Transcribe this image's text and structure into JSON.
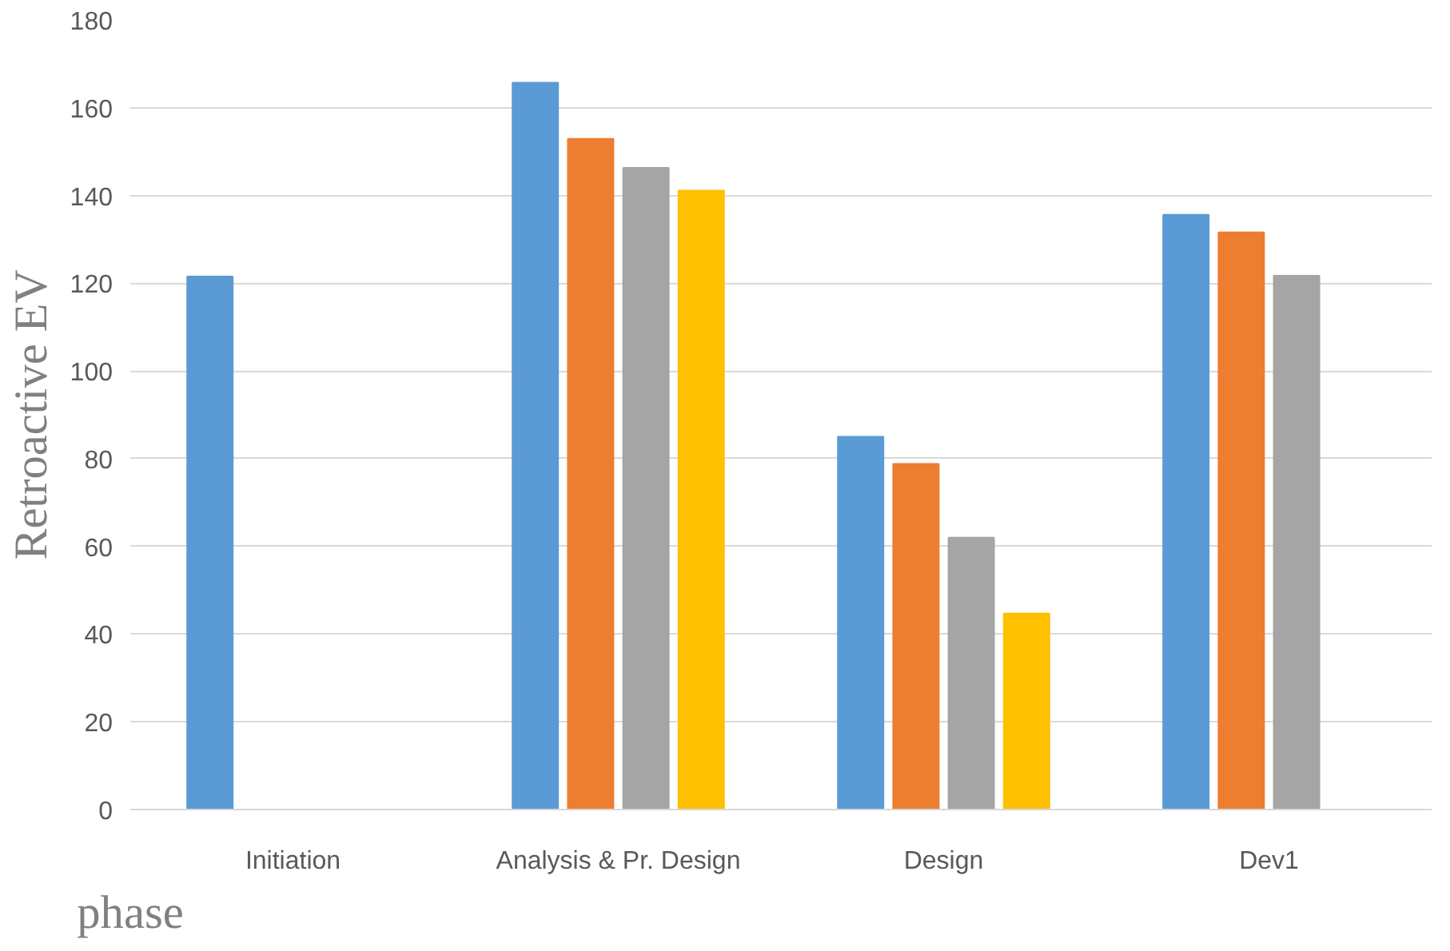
{
  "chart_data": {
    "type": "bar",
    "xlabel": "phase",
    "ylabel": "Retroactive EV",
    "categories": [
      "Initiation",
      "Analysis & Pr. Design",
      "Design",
      "Dev1"
    ],
    "series": [
      {
        "color": "#5b9bd5",
        "values": [
          121.5,
          165.7,
          85,
          135.6
        ]
      },
      {
        "color": "#ed7d31",
        "values": [
          null,
          152.9,
          78.8,
          131.6
        ]
      },
      {
        "color": "#a5a5a5",
        "values": [
          null,
          146.3,
          62,
          121.7
        ]
      },
      {
        "color": "#ffc000",
        "values": [
          null,
          141.1,
          44.7,
          null
        ]
      }
    ],
    "ylim": [
      0,
      180
    ],
    "yticks": [
      0,
      20,
      40,
      60,
      80,
      100,
      120,
      140,
      160,
      180
    ],
    "grid": "y"
  }
}
